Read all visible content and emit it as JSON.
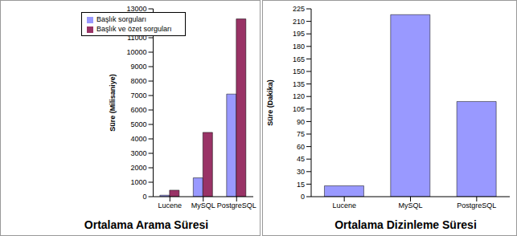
{
  "chart_data": [
    {
      "type": "bar",
      "title": "Ortalama Arama Süresi",
      "ylabel": "Süre (Milisaniye)",
      "categories": [
        "Lucene",
        "MySQL",
        "PostgreSQL"
      ],
      "series": [
        {
          "name": "Başlık sorguları",
          "color": "#9999ff",
          "values": [
            100,
            1300,
            7100
          ]
        },
        {
          "name": "Başlık ve özet sorguları",
          "color": "#993366",
          "values": [
            450,
            4450,
            12300
          ]
        }
      ],
      "ylim": [
        0,
        13000
      ],
      "yticks": [
        0,
        1000,
        2000,
        3000,
        4000,
        5000,
        6000,
        7000,
        8000,
        9000,
        10000,
        11000,
        12000,
        13000
      ],
      "grid": false,
      "legend": "top left"
    },
    {
      "type": "bar",
      "title": "Ortalama Dizinleme Süresi",
      "ylabel": "Süre (Dakika)",
      "categories": [
        "Lucene",
        "MySQL",
        "PostgreSQL"
      ],
      "values": [
        13,
        218,
        114
      ],
      "color": "#9999ff",
      "ylim": [
        0,
        225
      ],
      "yticks": [
        0,
        15,
        30,
        45,
        60,
        75,
        90,
        105,
        120,
        135,
        150,
        165,
        180,
        195,
        210,
        225
      ],
      "grid": false
    }
  ]
}
